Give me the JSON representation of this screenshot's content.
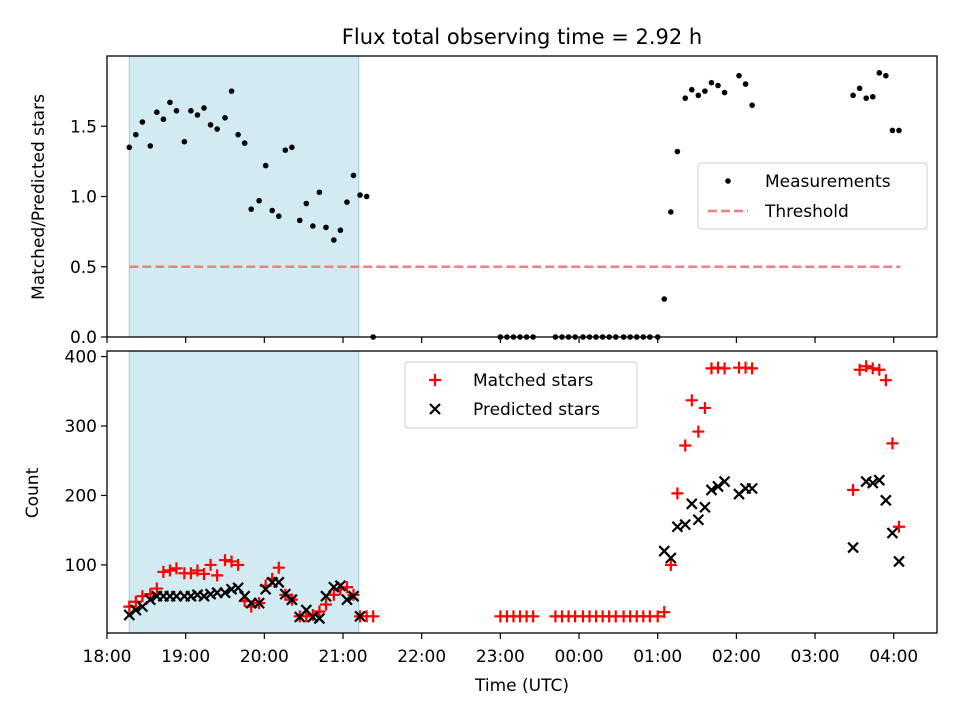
{
  "title": "Flux total observing time = 2.92 h",
  "chart_data": [
    {
      "type": "scatter",
      "ylabel": "Matched/Predicted stars",
      "ylim": [
        0,
        2.0
      ],
      "yticks": [
        0.0,
        0.5,
        1.0,
        1.5
      ],
      "ytick_labels": [
        "0.0",
        "0.5",
        "1.0",
        "1.5"
      ],
      "xlim": [
        "18:00",
        "04:33"
      ],
      "shaded_interval": [
        "18:17",
        "21:12"
      ],
      "threshold": {
        "name": "Threshold",
        "value": 0.5,
        "color": "#f08080",
        "style": "dashed",
        "from": "18:17",
        "to": "04:05"
      },
      "legend": {
        "position": "center-right",
        "entries": [
          "Measurements",
          "Threshold"
        ]
      },
      "series": [
        {
          "name": "Measurements",
          "marker": "dot",
          "color": "#000000",
          "x": [
            "18:17",
            "18:22",
            "18:27",
            "18:33",
            "18:38",
            "18:43",
            "18:48",
            "18:53",
            "18:59",
            "19:04",
            "19:09",
            "19:14",
            "19:19",
            "19:24",
            "19:30",
            "19:35",
            "19:40",
            "19:45",
            "19:50",
            "19:56",
            "20:01",
            "20:06",
            "20:11",
            "20:16",
            "20:21",
            "20:27",
            "20:32",
            "20:37",
            "20:42",
            "20:47",
            "20:53",
            "20:58",
            "21:03",
            "21:08",
            "21:13",
            "21:18",
            "21:23",
            "23:00",
            "23:05",
            "23:10",
            "23:15",
            "23:20",
            "23:25",
            "23:42",
            "23:47",
            "23:52",
            "23:57",
            "00:03",
            "00:08",
            "00:13",
            "00:18",
            "00:23",
            "00:28",
            "00:34",
            "00:39",
            "00:44",
            "00:49",
            "00:54",
            "01:00",
            "01:05",
            "01:10",
            "01:15",
            "01:21",
            "01:26",
            "01:31",
            "01:36",
            "01:41",
            "01:46",
            "01:51",
            "02:02",
            "02:07",
            "02:12",
            "03:29",
            "03:34",
            "03:39",
            "03:44",
            "03:49",
            "03:54",
            "03:59",
            "04:04"
          ],
          "y": [
            1.35,
            1.44,
            1.53,
            1.36,
            1.6,
            1.55,
            1.67,
            1.61,
            1.39,
            1.61,
            1.58,
            1.63,
            1.51,
            1.48,
            1.56,
            1.75,
            1.44,
            1.38,
            0.91,
            0.97,
            1.22,
            0.9,
            0.86,
            1.33,
            1.35,
            0.83,
            0.95,
            0.79,
            1.03,
            0.78,
            0.69,
            0.76,
            0.96,
            1.15,
            1.01,
            1.0,
            0.0,
            0.0,
            0.0,
            0.0,
            0.0,
            0.0,
            0.0,
            0.0,
            0.0,
            0.0,
            0.0,
            0.0,
            0.0,
            0.0,
            0.0,
            0.0,
            0.0,
            0.0,
            0.0,
            0.0,
            0.0,
            0.0,
            0.0,
            0.27,
            0.89,
            1.32,
            1.7,
            1.76,
            1.72,
            1.75,
            1.81,
            1.79,
            1.74,
            1.86,
            1.8,
            1.65,
            1.72,
            1.77,
            1.7,
            1.71,
            1.88,
            1.86,
            1.47,
            1.47
          ]
        }
      ]
    },
    {
      "type": "scatter",
      "xlabel": "Time (UTC)",
      "ylabel": "Count",
      "ylim": [
        2,
        408
      ],
      "yticks": [
        100,
        200,
        300,
        400
      ],
      "ytick_labels": [
        "100",
        "200",
        "300",
        "400"
      ],
      "xlim": [
        "18:00",
        "04:33"
      ],
      "xticks": [
        "18:00",
        "19:00",
        "20:00",
        "21:00",
        "22:00",
        "23:00",
        "00:00",
        "01:00",
        "02:00",
        "03:00",
        "04:00"
      ],
      "shaded_interval": [
        "18:17",
        "21:12"
      ],
      "legend": {
        "position": "upper-center",
        "entries": [
          "Matched stars",
          "Predicted stars"
        ]
      },
      "series": [
        {
          "name": "Matched stars",
          "marker": "plus",
          "color": "#ff0000",
          "x": [
            "18:17",
            "18:22",
            "18:27",
            "18:33",
            "18:38",
            "18:43",
            "18:48",
            "18:53",
            "18:59",
            "19:04",
            "19:09",
            "19:14",
            "19:19",
            "19:24",
            "19:30",
            "19:35",
            "19:40",
            "19:45",
            "19:50",
            "19:56",
            "20:01",
            "20:06",
            "20:11",
            "20:16",
            "20:21",
            "20:27",
            "20:32",
            "20:37",
            "20:42",
            "20:47",
            "20:53",
            "20:58",
            "21:03",
            "21:08",
            "21:13",
            "21:18",
            "21:23",
            "23:00",
            "23:05",
            "23:10",
            "23:15",
            "23:20",
            "23:25",
            "23:42",
            "23:47",
            "23:52",
            "23:57",
            "00:03",
            "00:08",
            "00:13",
            "00:18",
            "00:23",
            "00:28",
            "00:34",
            "00:39",
            "00:44",
            "00:49",
            "00:54",
            "01:00",
            "01:05",
            "01:10",
            "01:15",
            "01:21",
            "01:26",
            "01:31",
            "01:36",
            "01:41",
            "01:46",
            "01:51",
            "02:02",
            "02:07",
            "02:12",
            "03:29",
            "03:34",
            "03:39",
            "03:44",
            "03:49",
            "03:54",
            "03:59",
            "04:04"
          ],
          "y": [
            40,
            47,
            55,
            58,
            66,
            90,
            92,
            95,
            88,
            88,
            92,
            87,
            100,
            85,
            107,
            105,
            100,
            48,
            40,
            45,
            70,
            80,
            96,
            57,
            50,
            26,
            26,
            28,
            33,
            43,
            57,
            65,
            68,
            57,
            26,
            26,
            26,
            26,
            26,
            26,
            26,
            26,
            26,
            26,
            26,
            26,
            26,
            26,
            26,
            26,
            26,
            26,
            26,
            26,
            26,
            26,
            26,
            26,
            26,
            32,
            100,
            203,
            272,
            337,
            292,
            326,
            383,
            384,
            383,
            384,
            384,
            383,
            208,
            381,
            386,
            383,
            381,
            366,
            275,
            155
          ]
        },
        {
          "name": "Predicted stars",
          "marker": "x",
          "color": "#000000",
          "x": [
            "18:17",
            "18:22",
            "18:27",
            "18:33",
            "18:38",
            "18:43",
            "18:48",
            "18:53",
            "18:59",
            "19:04",
            "19:09",
            "19:14",
            "19:19",
            "19:24",
            "19:30",
            "19:35",
            "19:40",
            "19:45",
            "19:50",
            "19:56",
            "20:01",
            "20:06",
            "20:11",
            "20:16",
            "20:21",
            "20:27",
            "20:32",
            "20:37",
            "20:42",
            "20:47",
            "20:53",
            "20:58",
            "21:03",
            "21:08",
            "21:13",
            "01:05",
            "01:10",
            "01:15",
            "01:21",
            "01:26",
            "01:31",
            "01:36",
            "01:41",
            "01:46",
            "01:51",
            "02:02",
            "02:07",
            "02:12",
            "03:29",
            "03:39",
            "03:44",
            "03:49",
            "03:54",
            "03:59",
            "04:04"
          ],
          "y": [
            28,
            35,
            40,
            50,
            55,
            55,
            55,
            55,
            55,
            55,
            57,
            55,
            58,
            60,
            60,
            65,
            67,
            55,
            45,
            45,
            65,
            75,
            75,
            58,
            50,
            25,
            35,
            25,
            23,
            55,
            68,
            70,
            50,
            55,
            26,
            120,
            110,
            155,
            158,
            188,
            165,
            183,
            208,
            213,
            220,
            202,
            210,
            210,
            125,
            220,
            218,
            222,
            193,
            146,
            105
          ]
        }
      ]
    }
  ]
}
